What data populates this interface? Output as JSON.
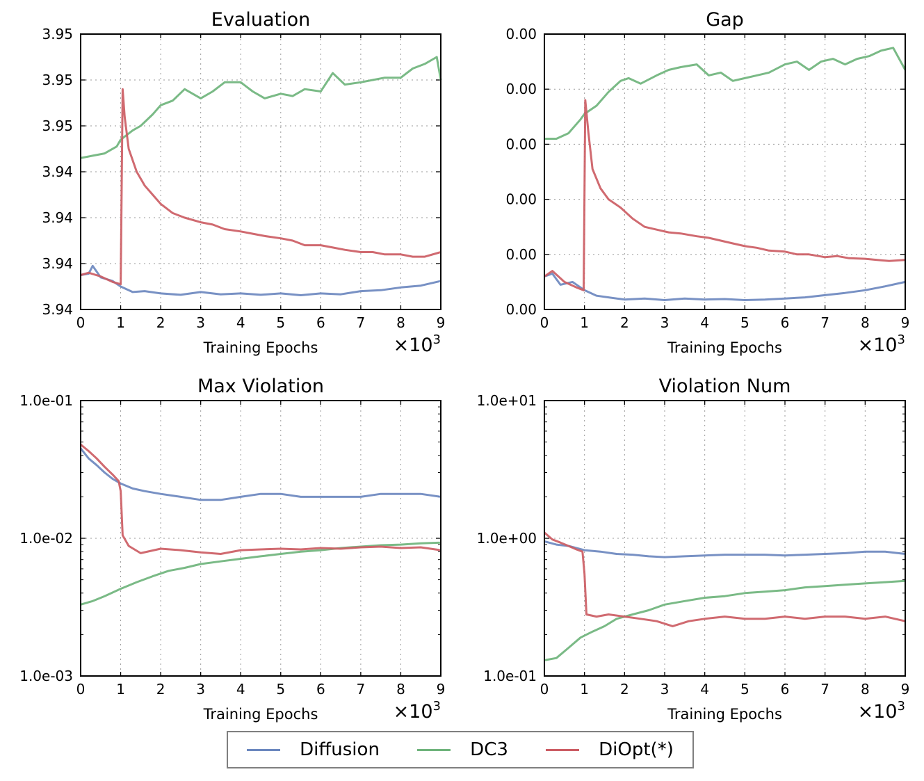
{
  "legend": [
    {
      "name": "Diffusion",
      "color": "#6c88bf"
    },
    {
      "name": "DC3",
      "color": "#6fb47c"
    },
    {
      "name": "DiOpt(*)",
      "color": "#cc5d64"
    }
  ],
  "chart_data": [
    {
      "type": "line",
      "title": "Evaluation",
      "xlabel": "Training Epochs",
      "x_multiplier": "×10^3",
      "xlim": [
        0,
        9
      ],
      "xticks": [
        "0",
        "1",
        "2",
        "3",
        "4",
        "5",
        "6",
        "7",
        "8",
        "9"
      ],
      "ylim": [
        0,
        6
      ],
      "yscale": "linear",
      "yticks": [
        "3.94",
        "3.94",
        "3.94",
        "3.94",
        "3.95",
        "3.95",
        "3.95"
      ],
      "grid": true,
      "series": [
        {
          "name": "Diffusion",
          "color": "#6c88bf",
          "x": [
            0,
            0.2,
            0.3,
            0.5,
            0.8,
            1.0,
            1.3,
            1.6,
            2.0,
            2.5,
            3.0,
            3.5,
            4.0,
            4.5,
            5.0,
            5.5,
            6.0,
            6.5,
            7.0,
            7.5,
            8.0,
            8.5,
            9.0
          ],
          "y": [
            0.75,
            0.78,
            0.95,
            0.7,
            0.62,
            0.5,
            0.38,
            0.4,
            0.35,
            0.32,
            0.38,
            0.33,
            0.35,
            0.32,
            0.35,
            0.31,
            0.35,
            0.33,
            0.4,
            0.42,
            0.48,
            0.52,
            0.62
          ]
        },
        {
          "name": "DC3",
          "color": "#6fb47c",
          "x": [
            0,
            0.3,
            0.6,
            0.9,
            1.0,
            1.3,
            1.5,
            1.8,
            2.0,
            2.3,
            2.6,
            3.0,
            3.3,
            3.6,
            4.0,
            4.3,
            4.6,
            5.0,
            5.3,
            5.6,
            6.0,
            6.3,
            6.6,
            7.0,
            7.3,
            7.6,
            8.0,
            8.3,
            8.6,
            8.9,
            9.0
          ],
          "y": [
            3.3,
            3.35,
            3.4,
            3.55,
            3.7,
            3.9,
            4.0,
            4.25,
            4.45,
            4.55,
            4.8,
            4.6,
            4.75,
            4.95,
            4.95,
            4.75,
            4.6,
            4.7,
            4.65,
            4.8,
            4.75,
            5.15,
            4.9,
            4.95,
            5.0,
            5.05,
            5.05,
            5.25,
            5.35,
            5.5,
            5.0
          ]
        },
        {
          "name": "DiOpt(*)",
          "color": "#cc5d64",
          "x": [
            0,
            0.2,
            0.5,
            0.8,
            1.0,
            1.05,
            1.1,
            1.2,
            1.4,
            1.6,
            1.8,
            2.0,
            2.3,
            2.6,
            3.0,
            3.3,
            3.6,
            4.0,
            4.3,
            4.6,
            5.0,
            5.3,
            5.6,
            6.0,
            6.3,
            6.6,
            7.0,
            7.3,
            7.6,
            8.0,
            8.3,
            8.6,
            9.0
          ],
          "y": [
            0.75,
            0.8,
            0.72,
            0.6,
            0.55,
            4.8,
            4.2,
            3.5,
            3.0,
            2.7,
            2.5,
            2.3,
            2.1,
            2.0,
            1.9,
            1.85,
            1.75,
            1.7,
            1.65,
            1.6,
            1.55,
            1.5,
            1.4,
            1.4,
            1.35,
            1.3,
            1.25,
            1.25,
            1.2,
            1.2,
            1.15,
            1.15,
            1.25
          ]
        }
      ]
    },
    {
      "type": "line",
      "title": "Gap",
      "xlabel": "Training Epochs",
      "x_multiplier": "×10^3",
      "xlim": [
        0,
        9
      ],
      "xticks": [
        "0",
        "1",
        "2",
        "3",
        "4",
        "5",
        "6",
        "7",
        "8",
        "9"
      ],
      "ylim": [
        0,
        5
      ],
      "yscale": "linear",
      "yticks": [
        "0.00",
        "0.00",
        "0.00",
        "0.00",
        "0.00",
        "0.00"
      ],
      "grid": true,
      "series": [
        {
          "name": "Diffusion",
          "color": "#6c88bf",
          "x": [
            0,
            0.2,
            0.4,
            0.7,
            1.0,
            1.3,
            1.6,
            2.0,
            2.5,
            3.0,
            3.5,
            4.0,
            4.5,
            5.0,
            5.5,
            6.0,
            6.5,
            7.0,
            7.5,
            8.0,
            8.5,
            9.0
          ],
          "y": [
            0.6,
            0.65,
            0.45,
            0.5,
            0.35,
            0.25,
            0.22,
            0.18,
            0.2,
            0.17,
            0.2,
            0.18,
            0.19,
            0.17,
            0.18,
            0.2,
            0.22,
            0.26,
            0.3,
            0.35,
            0.42,
            0.5
          ]
        },
        {
          "name": "DC3",
          "color": "#6fb47c",
          "x": [
            0,
            0.3,
            0.6,
            0.9,
            1.0,
            1.3,
            1.6,
            1.9,
            2.1,
            2.4,
            2.8,
            3.1,
            3.4,
            3.8,
            4.1,
            4.4,
            4.7,
            5.0,
            5.3,
            5.6,
            6.0,
            6.3,
            6.6,
            6.9,
            7.2,
            7.5,
            7.8,
            8.1,
            8.4,
            8.7,
            9.0
          ],
          "y": [
            3.1,
            3.1,
            3.2,
            3.45,
            3.55,
            3.7,
            3.95,
            4.15,
            4.2,
            4.1,
            4.25,
            4.35,
            4.4,
            4.45,
            4.25,
            4.3,
            4.15,
            4.2,
            4.25,
            4.3,
            4.45,
            4.5,
            4.35,
            4.5,
            4.55,
            4.45,
            4.55,
            4.6,
            4.7,
            4.75,
            4.35
          ]
        },
        {
          "name": "DiOpt(*)",
          "color": "#cc5d64",
          "x": [
            0,
            0.2,
            0.5,
            0.8,
            0.98,
            1.02,
            1.1,
            1.2,
            1.4,
            1.6,
            1.9,
            2.2,
            2.5,
            2.8,
            3.1,
            3.4,
            3.8,
            4.1,
            4.4,
            4.7,
            5.0,
            5.3,
            5.6,
            6.0,
            6.3,
            6.6,
            7.0,
            7.3,
            7.6,
            8.0,
            8.3,
            8.6,
            9.0
          ],
          "y": [
            0.6,
            0.7,
            0.5,
            0.4,
            0.35,
            3.8,
            3.2,
            2.55,
            2.2,
            2.0,
            1.85,
            1.65,
            1.5,
            1.45,
            1.4,
            1.38,
            1.33,
            1.3,
            1.25,
            1.2,
            1.15,
            1.12,
            1.07,
            1.05,
            1.0,
            1.0,
            0.95,
            0.97,
            0.93,
            0.92,
            0.9,
            0.88,
            0.9
          ]
        }
      ]
    },
    {
      "type": "line",
      "title": "Max Violation",
      "xlabel": "Training Epochs",
      "x_multiplier": "×10^3",
      "xlim": [
        0,
        9
      ],
      "xticks": [
        "0",
        "1",
        "2",
        "3",
        "4",
        "5",
        "6",
        "7",
        "8",
        "9"
      ],
      "ylim": [
        0.001,
        0.1
      ],
      "yscale": "log",
      "yticks": [
        "1.0e-03",
        "1.0e-02",
        "1.0e-01"
      ],
      "grid": true,
      "series": [
        {
          "name": "Diffusion",
          "color": "#6c88bf",
          "x": [
            0,
            0.2,
            0.4,
            0.6,
            0.8,
            1.0,
            1.3,
            1.6,
            2.0,
            2.5,
            3.0,
            3.5,
            4.0,
            4.5,
            5.0,
            5.5,
            6.0,
            6.5,
            7.0,
            7.5,
            8.0,
            8.5,
            9.0
          ],
          "y": [
            0.045,
            0.038,
            0.034,
            0.03,
            0.027,
            0.025,
            0.023,
            0.022,
            0.021,
            0.02,
            0.019,
            0.019,
            0.02,
            0.021,
            0.021,
            0.02,
            0.02,
            0.02,
            0.02,
            0.021,
            0.021,
            0.021,
            0.02
          ]
        },
        {
          "name": "DC3",
          "color": "#6fb47c",
          "x": [
            0,
            0.3,
            0.6,
            1.0,
            1.4,
            1.8,
            2.2,
            2.6,
            3.0,
            3.5,
            4.0,
            4.5,
            5.0,
            5.5,
            6.0,
            6.5,
            7.0,
            7.5,
            8.0,
            8.5,
            9.0
          ],
          "y": [
            0.0033,
            0.0035,
            0.0038,
            0.0043,
            0.0048,
            0.0053,
            0.0058,
            0.0061,
            0.0065,
            0.0068,
            0.0071,
            0.0074,
            0.0077,
            0.008,
            0.0082,
            0.0085,
            0.0087,
            0.0089,
            0.009,
            0.0092,
            0.0093
          ]
        },
        {
          "name": "DiOpt(*)",
          "color": "#cc5d64",
          "x": [
            0,
            0.2,
            0.4,
            0.6,
            0.8,
            0.95,
            1.0,
            1.05,
            1.2,
            1.5,
            2.0,
            2.5,
            3.0,
            3.5,
            4.0,
            4.5,
            5.0,
            5.5,
            6.0,
            6.5,
            7.0,
            7.5,
            8.0,
            8.5,
            9.0
          ],
          "y": [
            0.048,
            0.043,
            0.038,
            0.033,
            0.029,
            0.026,
            0.022,
            0.0105,
            0.0088,
            0.0078,
            0.0084,
            0.0082,
            0.0079,
            0.0077,
            0.0082,
            0.0083,
            0.0084,
            0.0083,
            0.0085,
            0.0084,
            0.0086,
            0.0087,
            0.0085,
            0.0086,
            0.0082
          ]
        }
      ]
    },
    {
      "type": "line",
      "title": "Violation Num",
      "xlabel": "Training Epochs",
      "x_multiplier": "×10^3",
      "xlim": [
        0,
        9
      ],
      "xticks": [
        "0",
        "1",
        "2",
        "3",
        "4",
        "5",
        "6",
        "7",
        "8",
        "9"
      ],
      "ylim": [
        0.1,
        10
      ],
      "yscale": "log",
      "yticks": [
        "1.0e-01",
        "1.0e+00",
        "1.0e+01"
      ],
      "grid": true,
      "series": [
        {
          "name": "Diffusion",
          "color": "#6c88bf",
          "x": [
            0,
            0.3,
            0.6,
            1.0,
            1.4,
            1.8,
            2.2,
            2.6,
            3.0,
            3.5,
            4.0,
            4.5,
            5.0,
            5.5,
            6.0,
            6.5,
            7.0,
            7.5,
            8.0,
            8.5,
            9.0
          ],
          "y": [
            0.95,
            0.9,
            0.88,
            0.82,
            0.8,
            0.77,
            0.76,
            0.74,
            0.73,
            0.74,
            0.75,
            0.76,
            0.76,
            0.76,
            0.75,
            0.76,
            0.77,
            0.78,
            0.8,
            0.8,
            0.77
          ]
        },
        {
          "name": "DC3",
          "color": "#6fb47c",
          "x": [
            0,
            0.3,
            0.6,
            0.9,
            1.2,
            1.5,
            1.8,
            2.2,
            2.6,
            3.0,
            3.5,
            4.0,
            4.5,
            5.0,
            5.5,
            6.0,
            6.5,
            7.0,
            7.5,
            8.0,
            8.5,
            9.0
          ],
          "y": [
            0.13,
            0.135,
            0.16,
            0.19,
            0.21,
            0.23,
            0.26,
            0.28,
            0.3,
            0.33,
            0.35,
            0.37,
            0.38,
            0.4,
            0.41,
            0.42,
            0.44,
            0.45,
            0.46,
            0.47,
            0.48,
            0.49
          ]
        },
        {
          "name": "DiOpt(*)",
          "color": "#cc5d64",
          "x": [
            0,
            0.2,
            0.4,
            0.6,
            0.8,
            0.95,
            1.0,
            1.05,
            1.3,
            1.6,
            2.0,
            2.4,
            2.8,
            3.2,
            3.6,
            4.0,
            4.5,
            5.0,
            5.5,
            6.0,
            6.5,
            7.0,
            7.5,
            8.0,
            8.5,
            9.0
          ],
          "y": [
            1.1,
            0.98,
            0.93,
            0.88,
            0.83,
            0.8,
            0.55,
            0.28,
            0.27,
            0.28,
            0.27,
            0.26,
            0.25,
            0.23,
            0.25,
            0.26,
            0.27,
            0.26,
            0.26,
            0.27,
            0.26,
            0.27,
            0.27,
            0.26,
            0.27,
            0.25
          ]
        }
      ]
    }
  ]
}
